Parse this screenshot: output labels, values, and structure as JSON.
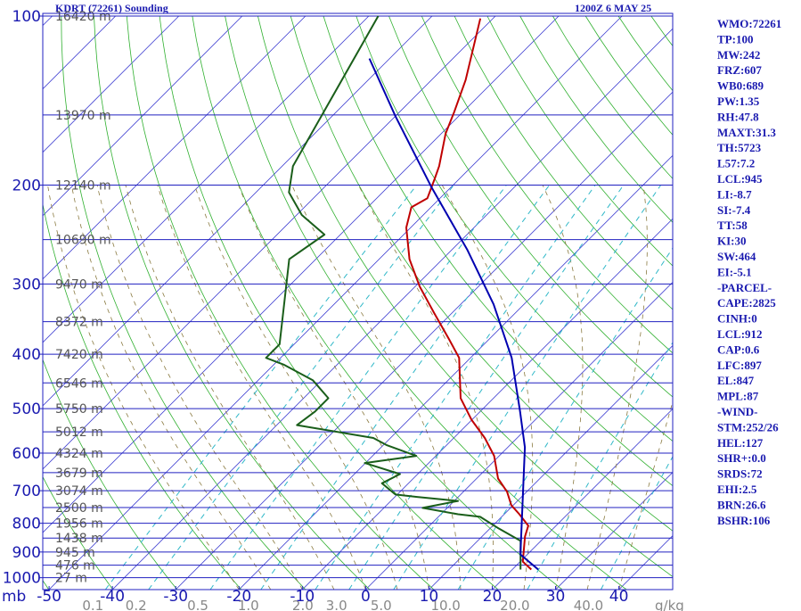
{
  "chart_data": {
    "type": "skewt",
    "title": "KDRT (72261) Sounding",
    "subtitle": "1200Z  6 MAY 25",
    "y_unit": "mb",
    "ylim": [
      100,
      1050
    ],
    "yticks": [
      100,
      200,
      300,
      400,
      500,
      600,
      700,
      800,
      900,
      1000
    ],
    "log_y": true,
    "xlim": [
      -51,
      48.5
    ],
    "xticks": [
      -50,
      -40,
      -30,
      -20,
      -10,
      0,
      10,
      20,
      30,
      40
    ],
    "height_levels": [
      {
        "value": 100,
        "label": "16420 m"
      },
      {
        "value": 150,
        "label": "13970 m"
      },
      {
        "value": 200,
        "label": "12140 m"
      },
      {
        "value": 250,
        "label": "10690 m"
      },
      {
        "value": 300,
        "label": "9470 m"
      },
      {
        "value": 350,
        "label": "8372 m"
      },
      {
        "value": 400,
        "label": "7420 m"
      },
      {
        "value": 450,
        "label": "6546 m"
      },
      {
        "value": 500,
        "label": "5750 m"
      },
      {
        "value": 550,
        "label": "5012 m"
      },
      {
        "value": 600,
        "label": "4324 m"
      },
      {
        "value": 650,
        "label": "3679 m"
      },
      {
        "value": 700,
        "label": "3074 m"
      },
      {
        "value": 750,
        "label": "2500 m"
      },
      {
        "value": 800,
        "label": "1956 m"
      },
      {
        "value": 850,
        "label": "1438 m"
      },
      {
        "value": 900,
        "label": "945 m"
      },
      {
        "value": 950,
        "label": "476 m"
      },
      {
        "value": 1000,
        "label": "27 m"
      }
    ],
    "mixing_ratios": [
      0.1,
      0.2,
      0.5,
      {
        "value": 1,
        "label": "1.0"
      },
      {
        "value": 2,
        "label": "2.0"
      },
      {
        "value": 3,
        "label": "3.0"
      },
      {
        "value": 5,
        "label": "5.0"
      },
      {
        "value": 10,
        "label": "10.0"
      },
      {
        "value": 20,
        "label": "20.0"
      },
      {
        "value": 40,
        "label": "40.0"
      }
    ],
    "mixing_ratio_unit": "g/kg",
    "series": [
      {
        "color": "#c00000",
        "y": [
          967,
          936,
          845,
          808,
          771,
          743,
          703,
          666,
          607,
          564,
          524,
          479,
          406,
          377,
          338,
          303,
          271,
          238,
          219,
          211,
          195,
          185,
          162,
          148,
          130,
          101
        ],
        "x": [
          23.0,
          20.4,
          16.8,
          15.6,
          12.4,
          9.7,
          6.9,
          3.4,
          -0.8,
          -5.1,
          -10.0,
          -15.2,
          -21.8,
          -26.2,
          -32.8,
          -39.3,
          -45.2,
          -50.7,
          -53.1,
          -52.0,
          -53.9,
          -55.2,
          -59.3,
          -61.4,
          -64.6,
          -72.0
        ]
      },
      {
        "color": "#1a5e1a",
        "y": [
          967,
          860,
          815,
          779,
          771,
          751,
          730,
          718,
          711,
          679,
          654,
          625,
          607,
          581,
          564,
          535,
          506,
          479,
          445,
          418,
          406,
          384,
          271,
          245,
          226,
          206,
          185,
          100
        ],
        "x": [
          21.3,
          16.8,
          11.1,
          6.6,
          2.7,
          -3.9,
          0.6,
          -6.5,
          -10.3,
          -14.2,
          -12.8,
          -20.1,
          -13.1,
          -19.4,
          -22.7,
          -36.8,
          -36.1,
          -36.1,
          -41.4,
          -48.3,
          -52.3,
          -52.3,
          -64.2,
          -62.5,
          -69.2,
          -74.8,
          -78.3,
          -88.5
        ]
      },
      {
        "color": "#0000b0",
        "y": [
          967,
          909,
          586,
          506,
          406,
          326,
          261,
          202,
          151,
          119
        ],
        "x": [
          24.1,
          18.9,
          2.7,
          -3.7,
          -13.5,
          -24.8,
          -37.5,
          -53.0,
          -69.9,
          -83.2
        ]
      }
    ],
    "indices": [
      "WMO:72261",
      "TP:100",
      "MW:242",
      "FRZ:607",
      "WB0:689",
      "PW:1.35",
      "RH:47.8",
      "MAXT:31.3",
      "TH:5723",
      "L57:7.2",
      "LCL:945",
      "LI:-8.7",
      "SI:-7.4",
      "TT:58",
      "KI:30",
      "SW:464",
      "EI:-5.1",
      "-PARCEL-",
      "CAPE:2825",
      "CINH:0",
      "LCL:912",
      "CAP:0.6",
      "LFC:897",
      "EL:847",
      "MPL:87",
      "-WIND-",
      "STM:252/26",
      "HEL:127",
      "SHR+:0.0",
      "SRDS:72",
      "EHI:2.5",
      "BRN:26.6",
      "BSHR:106"
    ]
  }
}
